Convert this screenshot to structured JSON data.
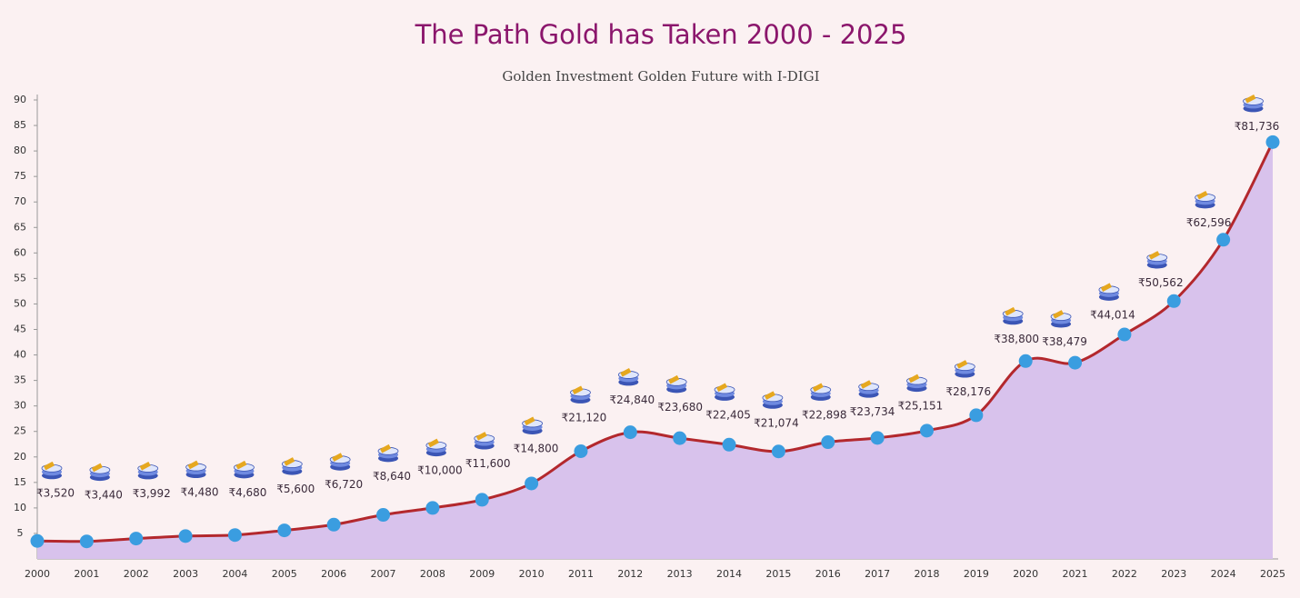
{
  "chart_data": {
    "type": "line",
    "title": "The Path Gold has Taken 2000 - 2025",
    "subtitle": "Golden Investment Golden Future with I-DIGI",
    "categories": [
      "2000",
      "2001",
      "2002",
      "2003",
      "2004",
      "2005",
      "2006",
      "2007",
      "2008",
      "2009",
      "2010",
      "2011",
      "2012",
      "2013",
      "2014",
      "2015",
      "2016",
      "2017",
      "2018",
      "2019",
      "2020",
      "2021",
      "2022",
      "2023",
      "2024",
      "2025"
    ],
    "series": [
      {
        "color": "#b3282d",
        "values": [
          3.52,
          3.44,
          3.992,
          4.48,
          4.68,
          5.6,
          6.72,
          8.64,
          10,
          11.6,
          14.8,
          21.12,
          24.84,
          23.68,
          22.405,
          21.074,
          22.898,
          23.734,
          25.151,
          28.176,
          38.8,
          38.479,
          44.014,
          50.562,
          62.596,
          81.736
        ],
        "value_labels": [
          "₹3,520",
          "₹3,440",
          "₹3,992",
          "₹4,480",
          "₹4,680",
          "₹5,600",
          "₹6,720",
          "₹8,640",
          "₹10,000",
          "₹11,600",
          "₹14,800",
          "₹21,120",
          "₹24,840",
          "₹23,680",
          "₹22,405",
          "₹21,074",
          "₹22,898",
          "₹23,734",
          "₹25,151",
          "₹28,176",
          "₹38,800",
          "₹38,479",
          "₹44,014",
          "₹50,562",
          "₹62,596",
          "₹81,736"
        ]
      }
    ],
    "marker_color": "#3a9de0",
    "area_color": "#d8c2ec",
    "ylim": [
      0,
      90
    ],
    "yticks": [
      5,
      10,
      15,
      20,
      25,
      30,
      35,
      40,
      45,
      50,
      55,
      60,
      65,
      70,
      75,
      80,
      85,
      90
    ]
  }
}
